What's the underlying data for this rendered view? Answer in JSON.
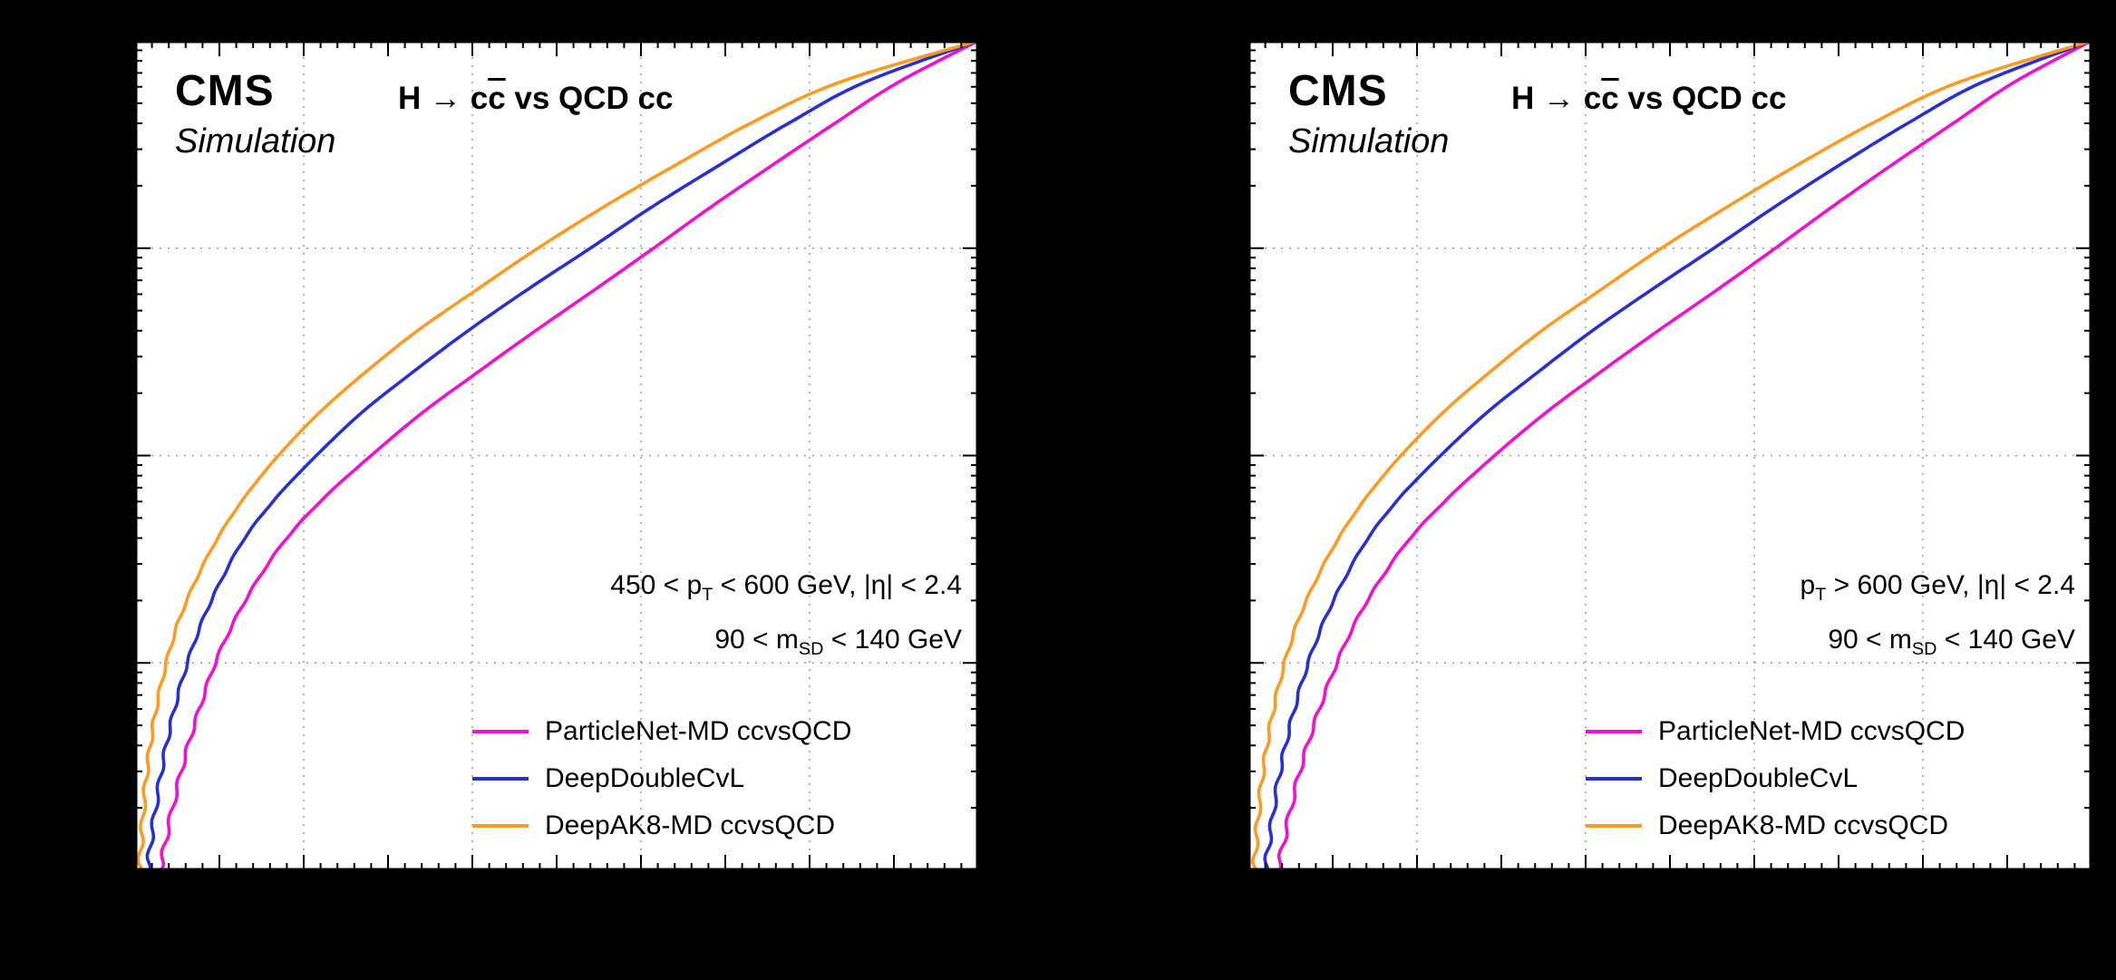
{
  "page": {
    "background": "#000000",
    "panel_background": "#ffffff"
  },
  "panels": [
    {
      "experiment": "CMS",
      "experiment_sub": "Simulation",
      "title_parts": {
        "pre": "H → c",
        "bar": "c",
        "post": " vs QCD cc"
      },
      "selection": {
        "pt": {
          "pre": "450 < p",
          "sub": "T",
          "post": " < 600 GeV, |η| < 2.4"
        },
        "msd": {
          "pre": "90 < m",
          "sub": "SD",
          "post": " < 140 GeV"
        }
      }
    },
    {
      "experiment": "CMS",
      "experiment_sub": "Simulation",
      "title_parts": {
        "pre": "H → c",
        "bar": "c",
        "post": " vs QCD cc"
      },
      "selection": {
        "pt": {
          "pre": "p",
          "sub": "T",
          "post": " > 600 GeV,   |η| < 2.4"
        },
        "msd": {
          "pre": "90 < m",
          "sub": "SD",
          "post": " < 140 GeV"
        }
      }
    }
  ],
  "chart_data": [
    {
      "type": "line",
      "title": "H → cc̄ vs QCD cc",
      "subtitle": "CMS Simulation",
      "annotations": [
        "450 < pT < 600 GeV, |η| < 2.4",
        "90 < mSD < 140 GeV"
      ],
      "x_axis": {
        "lim": [
          0,
          1
        ],
        "scale": "linear",
        "gridlines": [
          0.2,
          0.4,
          0.6,
          0.8
        ]
      },
      "y_axis": {
        "lim": [
          0.0001,
          1
        ],
        "scale": "log",
        "gridlines": [
          0.1,
          0.01,
          0.001
        ]
      },
      "grid": true,
      "legend_position": "bottom-right",
      "y": [
        0.0001,
        0.00015,
        0.00025,
        0.0004,
        0.00063,
        0.001,
        0.0016,
        0.0025,
        0.004,
        0.0063,
        0.01,
        0.016,
        0.025,
        0.04,
        0.063,
        0.1,
        0.16,
        0.25,
        0.4,
        0.63,
        1.0
      ],
      "series": [
        {
          "name": "ParticleNet-MD ccvsQCD",
          "color": "#f20fd3",
          "x": [
            0.03,
            0.038,
            0.05,
            0.063,
            0.078,
            0.095,
            0.118,
            0.145,
            0.18,
            0.225,
            0.28,
            0.34,
            0.405,
            0.475,
            0.545,
            0.615,
            0.685,
            0.755,
            0.83,
            0.905,
            1.0
          ]
        },
        {
          "name": "DeepDoubleCvL",
          "color": "#2630d3",
          "x": [
            0.015,
            0.02,
            0.028,
            0.037,
            0.048,
            0.062,
            0.08,
            0.102,
            0.13,
            0.168,
            0.215,
            0.268,
            0.328,
            0.395,
            0.465,
            0.54,
            0.615,
            0.692,
            0.775,
            0.865,
            1.0
          ]
        },
        {
          "name": "DeepAK8-MD ccvsQCD",
          "color": "#ff9a21",
          "x": [
            0.005,
            0.008,
            0.012,
            0.018,
            0.026,
            0.037,
            0.052,
            0.072,
            0.098,
            0.13,
            0.17,
            0.218,
            0.272,
            0.335,
            0.405,
            0.478,
            0.558,
            0.64,
            0.73,
            0.835,
            1.0
          ]
        }
      ]
    },
    {
      "type": "line",
      "title": "H → cc̄ vs QCD cc",
      "subtitle": "CMS Simulation",
      "annotations": [
        "pT > 600 GeV,   |η| < 2.4",
        "90 < mSD < 140 GeV"
      ],
      "x_axis": {
        "lim": [
          0,
          1
        ],
        "scale": "linear",
        "gridlines": [
          0.2,
          0.4,
          0.6,
          0.8
        ]
      },
      "y_axis": {
        "lim": [
          0.0001,
          1
        ],
        "scale": "log",
        "gridlines": [
          0.1,
          0.01,
          0.001
        ]
      },
      "grid": true,
      "legend_position": "bottom-right",
      "y": [
        0.0001,
        0.00015,
        0.00025,
        0.0004,
        0.00063,
        0.001,
        0.0016,
        0.0025,
        0.004,
        0.0063,
        0.01,
        0.016,
        0.025,
        0.04,
        0.063,
        0.1,
        0.16,
        0.25,
        0.4,
        0.63,
        1.0
      ],
      "series": [
        {
          "name": "ParticleNet-MD ccvsQCD",
          "color": "#f20fd3",
          "x": [
            0.035,
            0.044,
            0.056,
            0.07,
            0.086,
            0.105,
            0.128,
            0.156,
            0.192,
            0.238,
            0.292,
            0.352,
            0.416,
            0.486,
            0.556,
            0.625,
            0.694,
            0.762,
            0.836,
            0.908,
            1.0
          ]
        },
        {
          "name": "DeepDoubleCvL",
          "color": "#2630d3",
          "x": [
            0.02,
            0.026,
            0.034,
            0.044,
            0.056,
            0.071,
            0.09,
            0.113,
            0.142,
            0.18,
            0.228,
            0.282,
            0.342,
            0.408,
            0.478,
            0.552,
            0.626,
            0.7,
            0.782,
            0.87,
            1.0
          ]
        },
        {
          "name": "DeepAK8-MD ccvsQCD",
          "color": "#ff9a21",
          "x": [
            0.007,
            0.01,
            0.015,
            0.022,
            0.031,
            0.043,
            0.059,
            0.08,
            0.107,
            0.14,
            0.181,
            0.23,
            0.285,
            0.348,
            0.418,
            0.49,
            0.57,
            0.65,
            0.74,
            0.842,
            1.0
          ]
        }
      ]
    }
  ]
}
